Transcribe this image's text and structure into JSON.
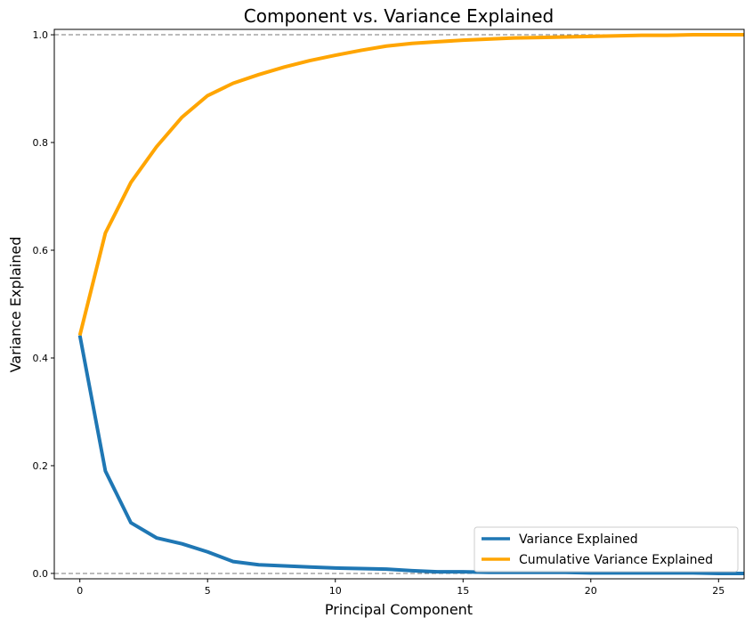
{
  "chart_data": {
    "type": "line",
    "title": "Component vs. Variance Explained",
    "xlabel": "Principal Component",
    "ylabel": "Variance Explained",
    "xlim": [
      -1,
      26
    ],
    "ylim": [
      -0.01,
      1.01
    ],
    "xticks": [
      0,
      5,
      10,
      15,
      20,
      25
    ],
    "xtick_labels": [
      "0",
      "5",
      "10",
      "15",
      "20",
      "25"
    ],
    "yticks": [
      0.0,
      0.2,
      0.4,
      0.6,
      0.8,
      1.0
    ],
    "ytick_labels": [
      "0.0",
      "0.2",
      "0.4",
      "0.6",
      "0.8",
      "1.0"
    ],
    "grid": false,
    "reference_lines": [
      0.0,
      1.0
    ],
    "legend_position": "lower-right",
    "x": [
      0,
      1,
      2,
      3,
      4,
      5,
      6,
      7,
      8,
      9,
      10,
      11,
      12,
      13,
      14,
      15,
      16,
      17,
      18,
      19,
      20,
      21,
      22,
      23,
      24,
      25,
      26
    ],
    "series": [
      {
        "name": "Variance Explained",
        "color": "#1f77b4",
        "values": [
          0.442,
          0.19,
          0.094,
          0.066,
          0.055,
          0.04,
          0.022,
          0.016,
          0.014,
          0.012,
          0.01,
          0.009,
          0.008,
          0.005,
          0.003,
          0.003,
          0.002,
          0.002,
          0.002,
          0.002,
          0.001,
          0.001,
          0.001,
          0.001,
          0.001,
          0.0,
          0.0
        ]
      },
      {
        "name": "Cumulative Variance Explained",
        "color": "#ffa500",
        "values": [
          0.442,
          0.632,
          0.726,
          0.792,
          0.847,
          0.887,
          0.91,
          0.926,
          0.94,
          0.952,
          0.962,
          0.971,
          0.979,
          0.984,
          0.987,
          0.99,
          0.992,
          0.994,
          0.995,
          0.996,
          0.997,
          0.998,
          0.999,
          0.999,
          1.0,
          1.0,
          1.0
        ]
      }
    ]
  }
}
